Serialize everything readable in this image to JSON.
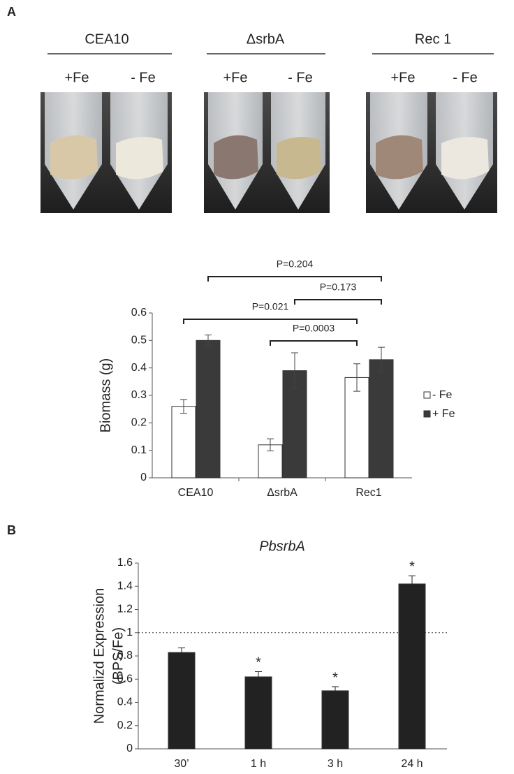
{
  "panel_labels": [
    "A",
    "B"
  ],
  "photos": [
    {
      "title": "CEA10",
      "left": "+Fe",
      "right": "- Fe"
    },
    {
      "title": "ΔsrbA",
      "left": "+Fe",
      "right": "- Fe"
    },
    {
      "title": "Rec 1",
      "left": "+Fe",
      "right": "- Fe"
    }
  ],
  "chart_data": [
    {
      "type": "bar",
      "y_label": "Biomass (g)",
      "categories": [
        "CEA10",
        "ΔsrbA",
        "Rec1"
      ],
      "series": [
        {
          "name": "- Fe",
          "color": "#ffffff",
          "values": [
            0.26,
            0.12,
            0.365
          ],
          "errors": [
            0.025,
            0.022,
            0.05
          ]
        },
        {
          "name": "+ Fe",
          "color": "#3a3a3a",
          "values": [
            0.5,
            0.39,
            0.43
          ],
          "errors": [
            0.02,
            0.065,
            0.045
          ]
        }
      ],
      "ylim": [
        0,
        0.6
      ],
      "yticks": [
        0,
        0.1,
        0.2,
        0.3,
        0.4,
        0.5,
        0.6
      ],
      "legend": "right",
      "annotations": [
        "P=0.204",
        "P=0.173",
        "P=0.021",
        "P=0.0003"
      ]
    },
    {
      "type": "bar",
      "title": "PbsrbA",
      "y_label": [
        "Normalizd Expression",
        "(BPS/Fe)"
      ],
      "categories": [
        "30’",
        "1 h",
        "3 h",
        "24 h"
      ],
      "series": [
        {
          "color": "#222222",
          "values": [
            0.83,
            0.62,
            0.5,
            1.42
          ],
          "errors": [
            0.04,
            0.045,
            0.035,
            0.07
          ]
        }
      ],
      "markers": [
        null,
        "*",
        "*",
        "*"
      ],
      "hline": 1,
      "ylim": [
        0,
        1.6
      ],
      "yticks": [
        0,
        0.2,
        0.4,
        0.6,
        0.8,
        1,
        1.2,
        1.4,
        1.6
      ]
    }
  ]
}
